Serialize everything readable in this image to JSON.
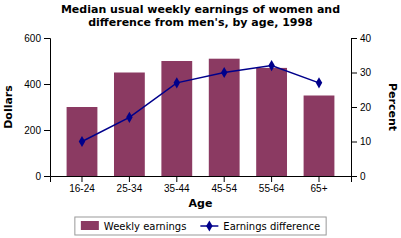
{
  "chart_data": {
    "type": "bar",
    "title": "Median usual weekly earnings of women and\ndifference from men's, by age, 1998",
    "categories": [
      "16-24",
      "25-34",
      "35-44",
      "45-54",
      "55-64",
      "65+"
    ],
    "series": [
      {
        "name": "Weekly earnings",
        "type": "bar",
        "color": "#8B3A62",
        "values": [
          300,
          450,
          500,
          510,
          470,
          350
        ]
      },
      {
        "name": "Earnings difference",
        "type": "line",
        "axis": "y2",
        "color": "#00008B",
        "marker": "diamond",
        "values": [
          10,
          17,
          27,
          30,
          32,
          27
        ]
      }
    ],
    "xlabel": "Age",
    "ylabel": "Dollars",
    "y2label": "Percent",
    "ylim": [
      0,
      600
    ],
    "yticks": [
      0,
      200,
      400,
      600
    ],
    "y2lim": [
      0,
      40
    ],
    "y2ticks": [
      0,
      10,
      20,
      30,
      40
    ],
    "grid": false,
    "legend": "bottom"
  }
}
